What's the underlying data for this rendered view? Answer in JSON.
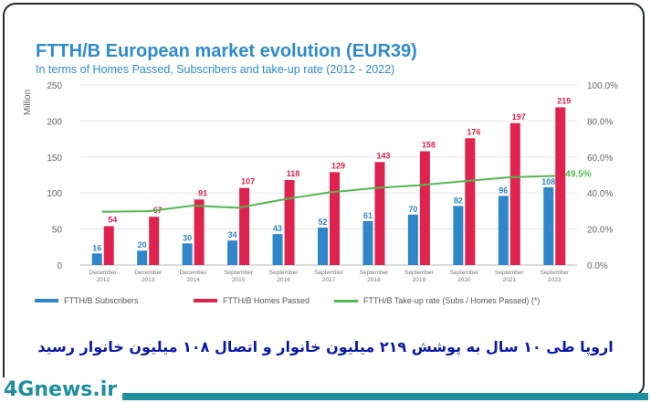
{
  "chart_data": {
    "type": "bar",
    "title": "FTTH/B European market evolution (EUR39)",
    "subtitle": "In terms of Homes Passed, Subscribers and take-up rate (2012 - 2022)",
    "ylabel": "Million",
    "ylim": [
      0,
      250
    ],
    "y_ticks": [
      "0",
      "50",
      "100",
      "150",
      "200",
      "250"
    ],
    "y2lim": [
      0,
      100
    ],
    "y2_ticks": [
      "0.0%",
      "20.0%",
      "40.0%",
      "60.0%",
      "80.0%",
      "100.0%"
    ],
    "categories": [
      [
        "December",
        "2012"
      ],
      [
        "December",
        "2013"
      ],
      [
        "December",
        "2014"
      ],
      [
        "September",
        "2015"
      ],
      [
        "September",
        "2016"
      ],
      [
        "September",
        "2017"
      ],
      [
        "September",
        "2018"
      ],
      [
        "September",
        "2019"
      ],
      [
        "September",
        "2020"
      ],
      [
        "September",
        "2021"
      ],
      [
        "September",
        "2022"
      ]
    ],
    "series": [
      {
        "name": "FTTH/B Subscribers",
        "color": "#2f86c8",
        "values": [
          16,
          20,
          30,
          34,
          43,
          52,
          61,
          70,
          82,
          96,
          108
        ]
      },
      {
        "name": "FTTH/B Homes Passed",
        "color": "#e0234e",
        "values": [
          54,
          67,
          91,
          107,
          118,
          129,
          143,
          158,
          176,
          197,
          219
        ]
      }
    ],
    "line": {
      "name": "FTTH/B Take-up rate (Subs / Homes Passed) (*)",
      "color": "#52b852",
      "values": [
        29.6,
        29.9,
        33.0,
        31.8,
        36.4,
        40.3,
        42.7,
        44.3,
        46.6,
        48.7,
        49.5
      ],
      "end_label": "49.5%"
    },
    "bar_labels": {
      "subscribers": [
        "16",
        "20",
        "30",
        "34",
        "43",
        "52",
        "61",
        "70",
        "82",
        "96",
        "108"
      ],
      "homes_passed": [
        "54",
        "67",
        "91",
        "107",
        "118",
        "129",
        "143",
        "158",
        "176",
        "197",
        "219"
      ]
    },
    "grid": true,
    "legend_position": "bottom"
  },
  "caption": "اروپا طی ۱۰ سال به پوشش ۲۱۹ میلیون خانوار و اتصال ۱۰۸ میلیون خانوار رسید",
  "watermark": "4Gnews.ir"
}
